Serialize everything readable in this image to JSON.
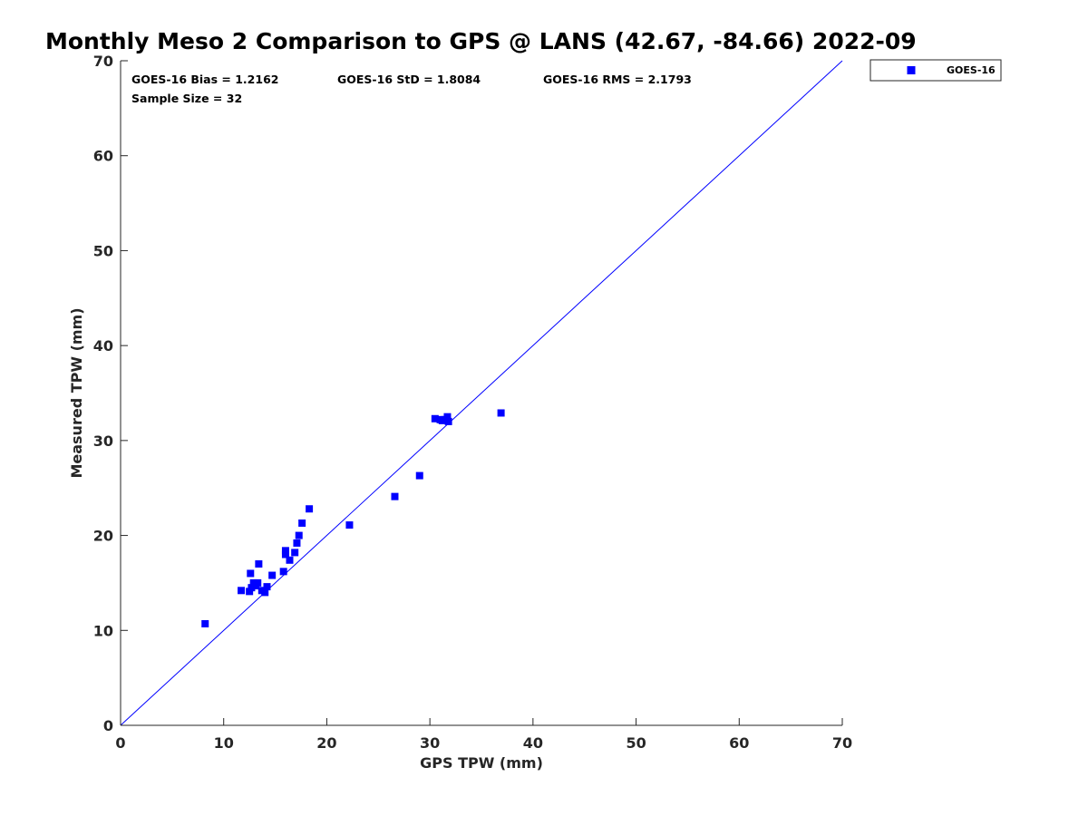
{
  "chart_data": {
    "type": "scatter",
    "title": "Monthly Meso 2 Comparison to GPS @ LANS (42.67, -84.66) 2022-09",
    "xlabel": "GPS TPW (mm)",
    "ylabel": "Measured TPW (mm)",
    "xlim": [
      0,
      70
    ],
    "ylim": [
      0,
      70
    ],
    "xticks": [
      "0",
      "10",
      "20",
      "30",
      "40",
      "50",
      "60",
      "70"
    ],
    "yticks": [
      "0",
      "10",
      "20",
      "30",
      "40",
      "50",
      "60",
      "70"
    ],
    "grid": false,
    "legend_position": "top-right outside",
    "reference_line": {
      "from": [
        0,
        0
      ],
      "to": [
        70,
        70
      ],
      "color": "#0000ff"
    },
    "annotations": {
      "bias": "GOES-16 Bias = 1.2162",
      "std": "GOES-16 StD = 1.8084",
      "rms": "GOES-16 RMS = 2.1793",
      "sample_size": "Sample Size = 32"
    },
    "series": [
      {
        "name": "GOES-16",
        "color": "#0000ff",
        "marker": "square",
        "points": [
          [
            8.2,
            10.7
          ],
          [
            11.7,
            14.2
          ],
          [
            12.5,
            14.1
          ],
          [
            12.7,
            14.5
          ],
          [
            12.6,
            16.0
          ],
          [
            12.9,
            15.0
          ],
          [
            13.1,
            14.7
          ],
          [
            13.3,
            15.0
          ],
          [
            13.4,
            17.0
          ],
          [
            13.7,
            14.2
          ],
          [
            14.0,
            14.0
          ],
          [
            14.2,
            14.6
          ],
          [
            14.7,
            15.8
          ],
          [
            15.8,
            16.2
          ],
          [
            16.0,
            18.0
          ],
          [
            16.0,
            18.4
          ],
          [
            16.4,
            17.4
          ],
          [
            16.9,
            18.2
          ],
          [
            17.1,
            19.2
          ],
          [
            17.3,
            20.0
          ],
          [
            17.6,
            21.3
          ],
          [
            18.3,
            22.8
          ],
          [
            22.2,
            21.1
          ],
          [
            26.6,
            24.1
          ],
          [
            29.0,
            26.3
          ],
          [
            30.5,
            32.3
          ],
          [
            31.0,
            32.2
          ],
          [
            31.2,
            32.1
          ],
          [
            31.5,
            32.2
          ],
          [
            31.7,
            32.5
          ],
          [
            31.8,
            32.0
          ],
          [
            36.9,
            32.9
          ]
        ]
      }
    ]
  }
}
